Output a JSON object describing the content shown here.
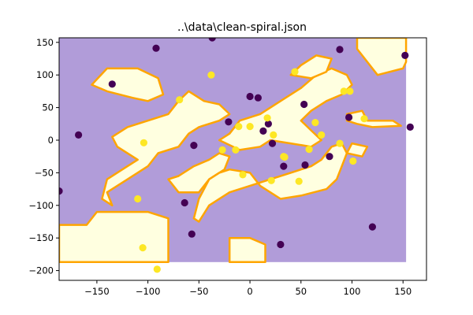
{
  "chart_data": {
    "type": "scatter",
    "title": "..\\data\\clean-spiral.json",
    "xlabel": "",
    "ylabel": "",
    "xlim": [
      -187,
      173
    ],
    "ylim": [
      -215,
      157
    ],
    "x_ticks": [
      -150,
      -100,
      -50,
      0,
      50,
      100,
      150
    ],
    "y_ticks": [
      150,
      100,
      50,
      0,
      -50,
      -100,
      -150,
      -200
    ],
    "x_tick_labels": [
      "−150",
      "−100",
      "−50",
      "0",
      "50",
      "100",
      "150"
    ],
    "y_tick_labels": [
      "150",
      "100",
      "50",
      "0",
      "−50",
      "−100",
      "−150",
      "−200"
    ],
    "grid": false,
    "colors": {
      "class_0_point": "#440154",
      "class_1_point": "#fde725",
      "class_0_region": "#b19cd9",
      "class_1_region": "#ffffe0",
      "boundary": "#ffa500"
    },
    "decision_region": {
      "xlim": [
        -187,
        153
      ],
      "ylim": [
        -187,
        157
      ],
      "background_class": 0,
      "class_1_polygons": [
        [
          [
            -187,
            -130
          ],
          [
            -187,
            -187
          ],
          [
            -150,
            -187
          ],
          [
            -100,
            -187
          ],
          [
            -80,
            -187
          ],
          [
            -80,
            -120
          ],
          [
            -100,
            -110
          ],
          [
            -130,
            -110
          ],
          [
            -150,
            -110
          ],
          [
            -160,
            -130
          ]
        ],
        [
          [
            -135,
            -100
          ],
          [
            -140,
            -80
          ],
          [
            -120,
            -60
          ],
          [
            -100,
            -40
          ],
          [
            -90,
            -20
          ],
          [
            -70,
            -10
          ],
          [
            -60,
            10
          ],
          [
            -50,
            20
          ],
          [
            -30,
            30
          ],
          [
            -20,
            40
          ],
          [
            -30,
            55
          ],
          [
            -45,
            60
          ],
          [
            -60,
            75
          ],
          [
            -70,
            60
          ],
          [
            -80,
            40
          ],
          [
            -100,
            30
          ],
          [
            -120,
            20
          ],
          [
            -135,
            5
          ],
          [
            -130,
            -10
          ],
          [
            -110,
            -30
          ],
          [
            -120,
            -40
          ],
          [
            -140,
            -60
          ],
          [
            -145,
            -90
          ]
        ],
        [
          [
            -155,
            85
          ],
          [
            -140,
            110
          ],
          [
            -110,
            110
          ],
          [
            -90,
            95
          ],
          [
            -85,
            70
          ],
          [
            -100,
            60
          ],
          [
            -115,
            65
          ],
          [
            -140,
            75
          ]
        ],
        [
          [
            -80,
            -60
          ],
          [
            -70,
            -55
          ],
          [
            -55,
            -40
          ],
          [
            -40,
            -30
          ],
          [
            -30,
            -20
          ],
          [
            -20,
            -25
          ],
          [
            -25,
            -45
          ],
          [
            -40,
            -60
          ],
          [
            -50,
            -80
          ],
          [
            -70,
            -80
          ]
        ],
        [
          [
            -55,
            -120
          ],
          [
            -50,
            -90
          ],
          [
            -40,
            -60
          ],
          [
            -30,
            -50
          ],
          [
            -20,
            -45
          ],
          [
            0,
            -50
          ],
          [
            10,
            -70
          ],
          [
            30,
            -90
          ],
          [
            50,
            -85
          ],
          [
            75,
            -75
          ],
          [
            85,
            -60
          ],
          [
            90,
            -40
          ],
          [
            95,
            -20
          ],
          [
            90,
            -5
          ],
          [
            80,
            -10
          ],
          [
            70,
            -30
          ],
          [
            60,
            -40
          ],
          [
            50,
            -45
          ],
          [
            40,
            -50
          ],
          [
            20,
            -60
          ],
          [
            0,
            -70
          ],
          [
            -20,
            -80
          ],
          [
            -40,
            -100
          ],
          [
            -50,
            -125
          ]
        ],
        [
          [
            -20,
            -187
          ],
          [
            15,
            -187
          ],
          [
            15,
            -160
          ],
          [
            0,
            -150
          ],
          [
            -20,
            -150
          ]
        ],
        [
          [
            -30,
            0
          ],
          [
            -20,
            10
          ],
          [
            -10,
            30
          ],
          [
            10,
            40
          ],
          [
            30,
            60
          ],
          [
            50,
            80
          ],
          [
            65,
            100
          ],
          [
            80,
            110
          ],
          [
            95,
            100
          ],
          [
            100,
            85
          ],
          [
            90,
            70
          ],
          [
            75,
            60
          ],
          [
            60,
            45
          ],
          [
            50,
            30
          ],
          [
            60,
            15
          ],
          [
            70,
            0
          ],
          [
            60,
            -10
          ],
          [
            40,
            -5
          ],
          [
            20,
            0
          ],
          [
            10,
            -10
          ],
          [
            -10,
            -15
          ]
        ],
        [
          [
            40,
            100
          ],
          [
            50,
            115
          ],
          [
            65,
            130
          ],
          [
            80,
            125
          ],
          [
            75,
            105
          ],
          [
            60,
            95
          ]
        ],
        [
          [
            95,
            40
          ],
          [
            110,
            45
          ],
          [
            115,
            30
          ],
          [
            140,
            30
          ],
          [
            148,
            22
          ],
          [
            120,
            20
          ],
          [
            105,
            25
          ],
          [
            95,
            30
          ]
        ],
        [
          [
            95,
            -20
          ],
          [
            110,
            -25
          ],
          [
            115,
            -10
          ],
          [
            100,
            -5
          ]
        ],
        [
          [
            105,
            140
          ],
          [
            125,
            100
          ],
          [
            150,
            110
          ],
          [
            153,
            120
          ],
          [
            153,
            157
          ],
          [
            105,
            157
          ]
        ]
      ]
    },
    "series": [
      {
        "class": 0,
        "x": [
          -187,
          -168,
          -135,
          -92,
          -37,
          0,
          18,
          88,
          152,
          157,
          120,
          97,
          78,
          54,
          22,
          33,
          8,
          -21,
          -55,
          -64,
          -57,
          13,
          30,
          53
        ],
        "y": [
          -78,
          8,
          86,
          141,
          157,
          67,
          25,
          139,
          130,
          20,
          -133,
          35,
          -25,
          -38,
          -5,
          -40,
          65,
          28,
          -8,
          -96,
          -144,
          14,
          -160,
          55
        ],
        "values_y_note": ""
      },
      {
        "class": 1,
        "x": [
          -104,
          -105,
          -91,
          -110,
          -69,
          -38,
          -14,
          0,
          17,
          23,
          33,
          44,
          64,
          70,
          88,
          92,
          98,
          112,
          -27,
          -11,
          21,
          34,
          58,
          101,
          48,
          -7
        ],
        "y": [
          -4,
          -165,
          -198,
          -90,
          62,
          100,
          -15,
          21,
          34,
          8,
          -25,
          105,
          27,
          8,
          -5,
          75,
          75,
          33,
          -15,
          21,
          -62,
          -26,
          -14,
          -32,
          -63,
          -53
        ],
        "values_y_note": ""
      }
    ]
  }
}
